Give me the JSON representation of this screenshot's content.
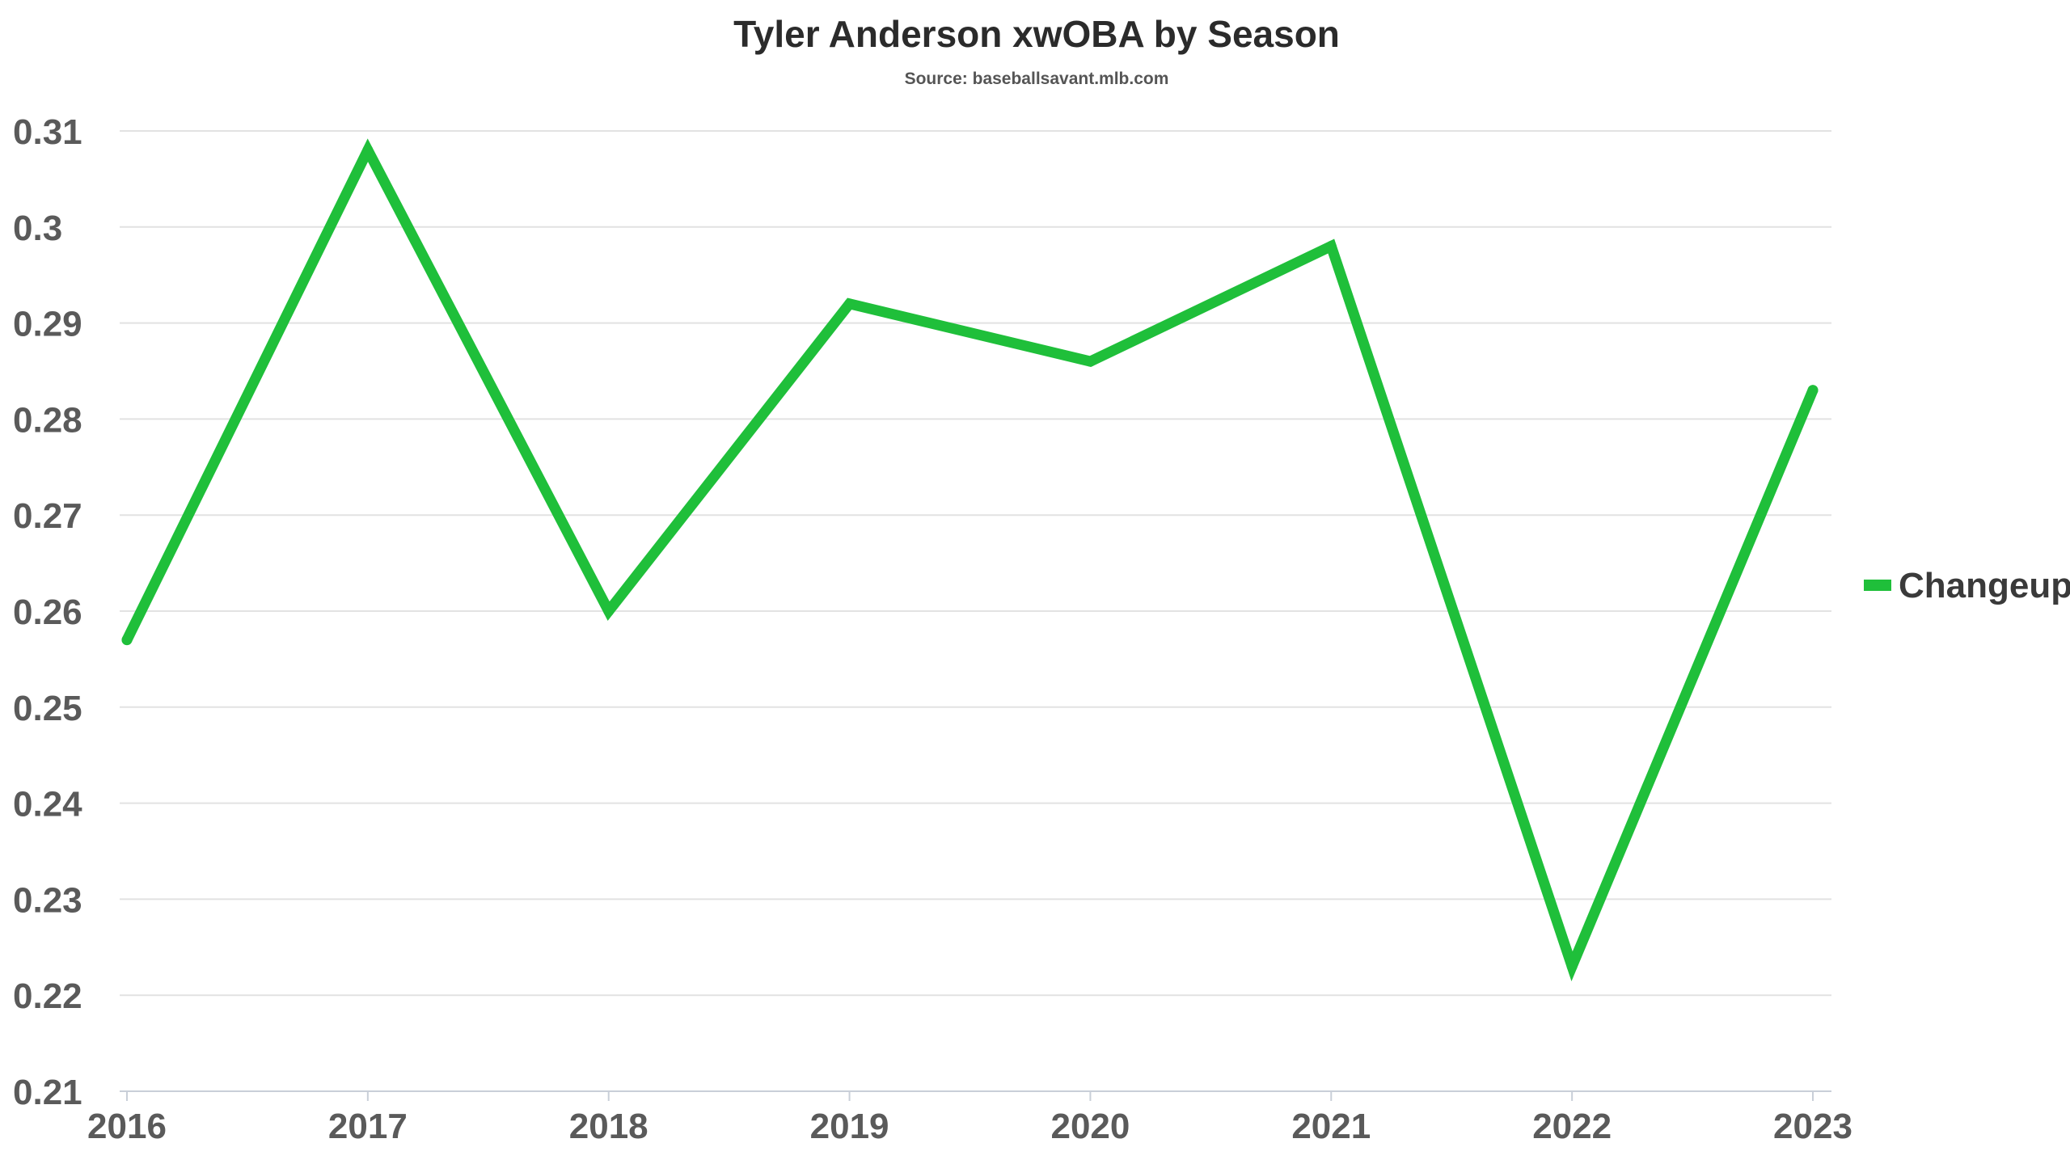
{
  "chart_data": {
    "type": "line",
    "title": "Tyler Anderson xwOBA by Season",
    "subtitle": "Source: baseballsavant.mlb.com",
    "x": [
      "2016",
      "2017",
      "2018",
      "2019",
      "2020",
      "2021",
      "2022",
      "2023"
    ],
    "series": [
      {
        "name": "Changeup",
        "color": "#1fbf3a",
        "values": [
          0.257,
          0.308,
          0.26,
          0.292,
          0.286,
          0.298,
          0.223,
          0.283
        ]
      }
    ],
    "ylim": [
      0.21,
      0.31
    ],
    "yticks": [
      "0.21",
      "0.22",
      "0.23",
      "0.24",
      "0.25",
      "0.26",
      "0.27",
      "0.28",
      "0.29",
      "0.3",
      "0.31"
    ],
    "xlabel": "",
    "ylabel": "",
    "grid": true,
    "legend_position": "right",
    "colors": {
      "line": "#1fbf3a",
      "grid": "#e2e2e2",
      "axis": "#c9cfd8",
      "text": "#5a5a5a"
    }
  }
}
